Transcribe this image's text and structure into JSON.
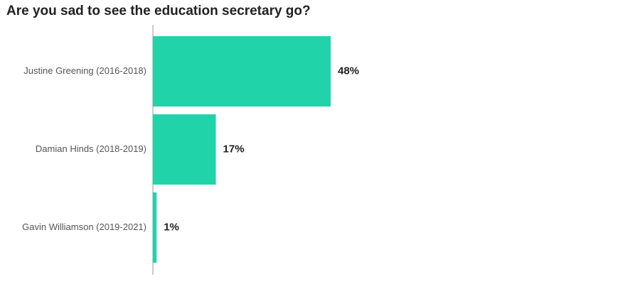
{
  "title": "Are you sad to see the education secretary go?",
  "colors": {
    "bar": "#21d3a9",
    "axis": "#bbbbbb"
  },
  "chart_data": {
    "type": "bar",
    "orientation": "horizontal",
    "title": "Are you sad to see the education secretary go?",
    "categories": [
      "Justine Greening (2016-2018)",
      "Damian Hinds (2018-2019)",
      "Gavin Williamson (2019-2021)"
    ],
    "values": [
      48,
      17,
      1
    ],
    "value_labels": [
      "48%",
      "17%",
      "1%"
    ],
    "xlim": [
      0,
      100
    ],
    "grid": false,
    "legend": "none"
  }
}
